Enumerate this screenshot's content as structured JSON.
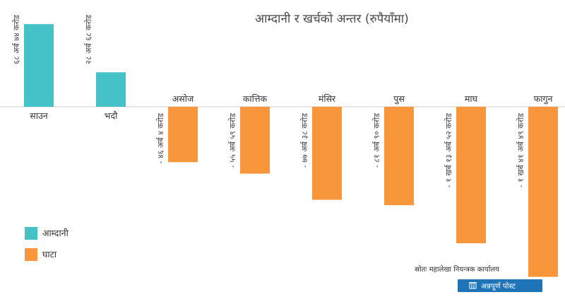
{
  "chart_data": {
    "type": "bar",
    "title": "आम्दानी र खर्चको अन्तर (रुपैयाँमा)",
    "categories": [
      "साउन",
      "भदौ",
      "असोज",
      "कात्तिक",
      "मंसिर",
      "पुस",
      "माघ",
      "फागुन"
    ],
    "values": [
      68.74,
      28.68,
      -46.04,
      -55.59,
      -77.38,
      -81.9,
      -113.52,
      -141.49
    ],
    "value_labels": [
      "६८ अर्ब ७४ करोड",
      "२८ अर्ब ६८ करोड",
      "- ४६ अर्ब ४ करोड",
      "- ५५ अर्ब ५९ करोड",
      "- ७७ अर्ब ३८ करोड",
      "- ८१ अर्ब ९० करोड",
      "- १ खर्ब १३ अर्ब ५२ करोड",
      "- १ खर्ब ४१ अर्ब ४९ करोड"
    ],
    "legend": [
      {
        "label": "आम्दानी",
        "color": "#45c2c8"
      },
      {
        "label": "घाटा",
        "color": "#f7963a"
      }
    ],
    "colors": {
      "positive": "#45c2c8",
      "negative": "#f7963a"
    },
    "legend_position": "bottom-left",
    "grid": false
  },
  "source": "स्रोतः महालेखा नियन्त्रक कार्यालय",
  "brand": {
    "name": "अन्नपूर्ण पोस्ट",
    "color": "#1f74b8"
  }
}
